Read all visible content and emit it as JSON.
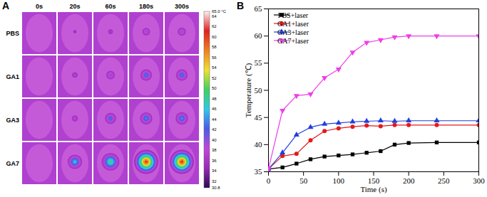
{
  "chart_data": [
    {
      "type": "image_grid",
      "title": "A",
      "rows": [
        "PBS",
        "GA1",
        "GA3",
        "GA7"
      ],
      "columns": [
        {
          "value": 0,
          "label": "0s"
        },
        {
          "value": 20,
          "label": "20s"
        },
        {
          "value": 60,
          "label": "60s"
        },
        {
          "value": 180,
          "label": "180s"
        },
        {
          "value": 300,
          "label": "300s"
        }
      ],
      "colorbar": {
        "range": [
          30.8,
          65.0
        ],
        "ticks": [
          {
            "value": 65.0,
            "label": "65.0 °C"
          },
          64,
          62,
          60,
          58,
          56,
          54,
          52,
          50,
          48,
          46,
          44,
          42,
          40,
          38,
          36,
          34,
          32,
          {
            "value": 30.8,
            "label": "30.8"
          }
        ]
      }
    },
    {
      "type": "line",
      "title": "B",
      "x_label": "Time (s)",
      "y_label": "Temperature (℃)",
      "x": [
        0,
        20,
        40,
        60,
        80,
        100,
        120,
        140,
        160,
        180,
        200,
        240,
        300
      ],
      "series": [
        {
          "name": "PBS+laser",
          "color": "#000000",
          "marker": "square",
          "values": [
            35.5,
            35.8,
            36.5,
            37.3,
            37.8,
            38.0,
            38.2,
            38.5,
            38.8,
            40.0,
            40.3,
            40.4,
            40.4
          ]
        },
        {
          "name": "GA1+laser",
          "color": "#e31a1c",
          "marker": "circle",
          "values": [
            35.5,
            37.9,
            38.3,
            40.8,
            42.5,
            43.0,
            43.3,
            43.5,
            43.4,
            43.6,
            43.6,
            43.6,
            43.6
          ]
        },
        {
          "name": "GA3+laser",
          "color": "#1f3fe0",
          "marker": "triangle",
          "values": [
            35.5,
            38.5,
            41.8,
            43.2,
            43.8,
            44.0,
            44.2,
            44.3,
            44.4,
            44.3,
            44.4,
            44.4,
            44.4
          ]
        },
        {
          "name": "GA7+laser",
          "color": "#ee3ee8",
          "marker": "triangle-down",
          "values": [
            35.5,
            46.3,
            49.0,
            49.3,
            52.3,
            53.9,
            57.0,
            58.8,
            59.3,
            59.8,
            60.0,
            60.0,
            60.0
          ]
        }
      ],
      "xlim": [
        0,
        300
      ],
      "xticks": [
        0,
        50,
        100,
        150,
        200,
        250,
        300
      ],
      "ylim": [
        35,
        65
      ],
      "yticks": [
        35,
        40,
        45,
        50,
        55,
        60,
        65
      ],
      "grid": false,
      "legend": "top-left"
    }
  ]
}
